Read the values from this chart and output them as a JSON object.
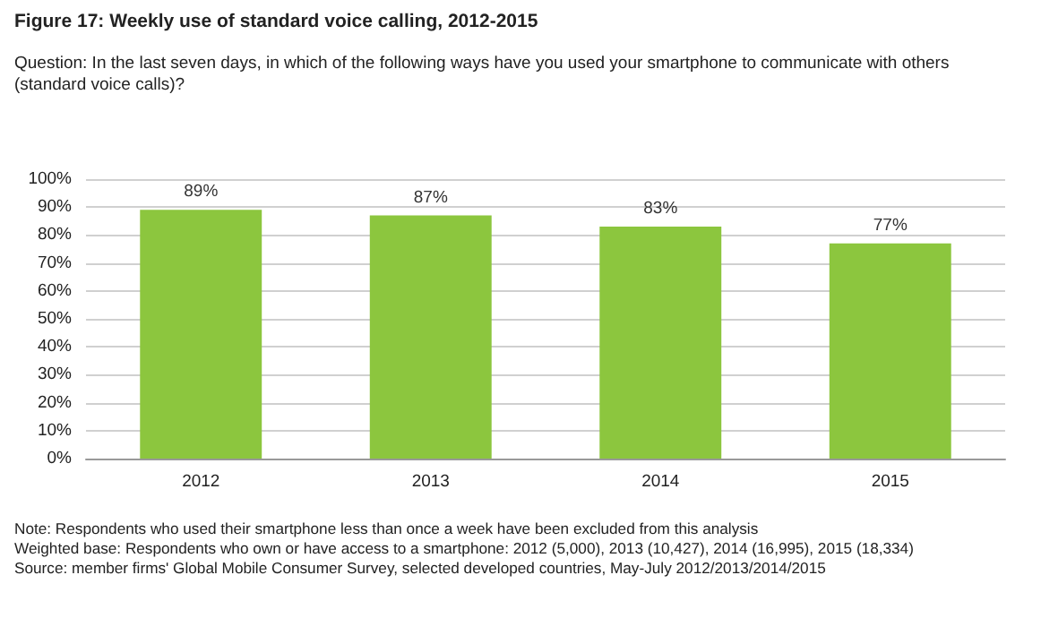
{
  "chart_data": {
    "type": "bar",
    "title": "Figure 17: Weekly use of standard voice calling, 2012-2015",
    "subtitle": "Question: In the last seven days, in which of the following ways have you used your smartphone to communicate with others (standard voice calls)?",
    "categories": [
      "2012",
      "2013",
      "2014",
      "2015"
    ],
    "values": [
      89,
      87,
      83,
      77
    ],
    "value_labels": [
      "89%",
      "87%",
      "83%",
      "77%"
    ],
    "color": "#8cc63e",
    "ylim": [
      0,
      100
    ],
    "yticks": [
      {
        "value": 0,
        "label": "0%"
      },
      {
        "value": 10,
        "label": "10%"
      },
      {
        "value": 20,
        "label": "20%"
      },
      {
        "value": 30,
        "label": "30%"
      },
      {
        "value": 40,
        "label": "40%"
      },
      {
        "value": 50,
        "label": "50%"
      },
      {
        "value": 60,
        "label": "60%"
      },
      {
        "value": 70,
        "label": "70%"
      },
      {
        "value": 80,
        "label": "80%"
      },
      {
        "value": 90,
        "label": "90%"
      },
      {
        "value": 100,
        "label": "100%"
      }
    ],
    "grid": "y",
    "annotations": [
      "Note: Respondents who used their smartphone less than once a week have been excluded from this analysis",
      "Weighted base: Respondents who own or have access to a smartphone: 2012 (5,000), 2013 (10,427), 2014 (16,995), 2015 (18,334)",
      "Source: member firms' Global Mobile Consumer Survey, selected developed countries, May-July 2012/2013/2014/2015"
    ]
  }
}
